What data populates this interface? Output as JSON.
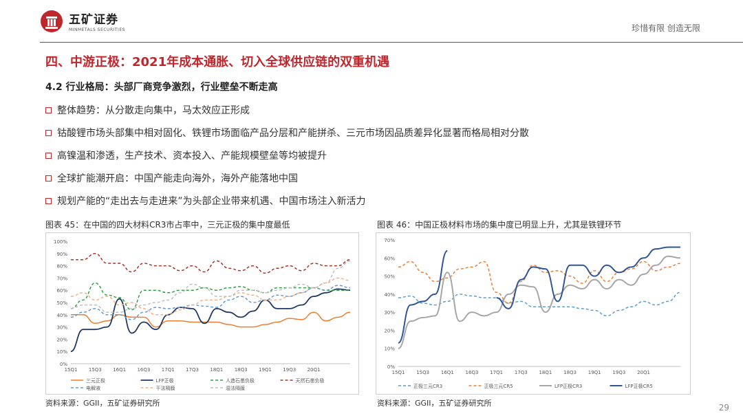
{
  "brand": {
    "name_cn": "五矿证券",
    "name_en": "MINMETALS SECURITIES",
    "slogan": "珍惜有限  创造无限"
  },
  "colors": {
    "accent": "#c0272d"
  },
  "title": "四、中游正极：2021年成本通胀、切入全球供应链的双重机遇",
  "subtitle": "4.2 行业格局：头部厂商竞争激烈，行业壁垒不断走高",
  "bullets": [
    "整体趋势：从分散走向集中，马太效应正形成",
    "钴酸锂市场头部集中相对固化、铁锂市场面临产品分层和产能拼杀、三元市场因品质差异化显著而格局相对分散",
    "高镍温和渗透，生产技术、资本投入、产能规模壁垒等均被提升",
    "全球扩能潮开启：中国产能走向海外，海外产能落地中国",
    "规划产能的“走出去与走进来”为头部企业带来机遇、中国市场注入新活力"
  ],
  "chart1_caption": "图表 45：在中国的四大材料CR3市占率中，三元正极的集中度最低",
  "chart2_caption": "图表 46：中国正极材料市场的集中度已明显上升，尤其是铁锂环节",
  "source1": "资料来源：GGII，五矿证券研究所",
  "source2": "资料来源：GGII，五矿证券研究所",
  "page_number": "29",
  "chart_data": [
    {
      "type": "line",
      "x_ticks": [
        "15Q1",
        "15Q3",
        "16Q1",
        "16Q3",
        "17Q1",
        "17Q3",
        "18Q1",
        "18Q3",
        "19Q1",
        "19Q3",
        "20Q1"
      ],
      "ylim": [
        0,
        1
      ],
      "y_ticks": [
        "0%",
        "10%",
        "20%",
        "30%",
        "40%",
        "50%",
        "60%",
        "70%",
        "80%",
        "90%",
        "100%"
      ],
      "grid": false,
      "legend": "bottom",
      "series": [
        {
          "name": "三元正极",
          "color": "#ed7d31",
          "style": "solid",
          "width": 1.5,
          "values": [
            0.4,
            0.4,
            0.33,
            0.35,
            0.4,
            0.38,
            0.38,
            0.3,
            0.35,
            0.35,
            0.34,
            0.34,
            0.34,
            0.32,
            0.3,
            0.3,
            0.32,
            0.34,
            0.37,
            0.36,
            0.42,
            0.35,
            0.38,
            0.42
          ]
        },
        {
          "name": "LFP正极",
          "color": "#1f3864",
          "style": "solid",
          "width": 1.8,
          "values": [
            0.1,
            0.28,
            0.28,
            0.3,
            0.53,
            0.25,
            0.34,
            0.28,
            0.4,
            0.46,
            0.45,
            0.33,
            0.45,
            0.42,
            0.38,
            0.43,
            0.52,
            0.45,
            0.45,
            0.48,
            0.55,
            0.58,
            0.61,
            0.6
          ]
        },
        {
          "name": "人造石墨负极",
          "color": "#2e9e3f",
          "style": "dashed",
          "width": 1.5,
          "values": [
            0.45,
            0.52,
            0.66,
            0.56,
            0.54,
            0.44,
            0.6,
            0.6,
            0.58,
            0.6,
            0.6,
            0.62,
            0.6,
            0.62,
            0.63,
            0.6,
            0.58,
            0.62,
            0.62,
            0.62,
            0.62,
            0.6,
            0.6,
            0.6
          ]
        },
        {
          "name": "天然石墨负极",
          "color": "#a93226",
          "style": "dashed",
          "width": 1.5,
          "values": [
            0.85,
            0.85,
            0.9,
            0.82,
            0.82,
            0.75,
            0.82,
            0.8,
            0.8,
            0.76,
            0.8,
            0.75,
            0.84,
            0.78,
            0.76,
            0.8,
            0.74,
            0.78,
            0.8,
            0.76,
            0.82,
            0.8,
            0.8,
            0.85
          ]
        },
        {
          "name": "电解液",
          "color": "#5b9bd5",
          "style": "dashed",
          "width": 1.5,
          "values": [
            0.38,
            0.42,
            0.45,
            0.4,
            0.4,
            0.36,
            0.42,
            0.46,
            0.45,
            0.46,
            0.48,
            0.47,
            0.46,
            0.52,
            0.55,
            0.5,
            0.52,
            0.56,
            0.55,
            0.58,
            0.62,
            0.6,
            0.64,
            0.62
          ]
        },
        {
          "name": "干法隔膜",
          "color": "#f4b183",
          "style": "dashed",
          "width": 1.5,
          "values": [
            0.55,
            0.58,
            0.52,
            0.55,
            0.48,
            0.5,
            0.45,
            0.4,
            0.4,
            0.44,
            0.48,
            0.52,
            0.52,
            0.55,
            0.58,
            0.56,
            0.52,
            0.52,
            0.55,
            0.58,
            0.62,
            0.66,
            0.7,
            0.68
          ]
        },
        {
          "name": "湿法隔膜",
          "color": "#bfbfbf",
          "style": "dashed",
          "width": 1.5,
          "values": [
            0.45,
            0.48,
            0.48,
            0.42,
            0.42,
            0.45,
            0.48,
            0.5,
            0.52,
            0.58,
            0.65,
            0.62,
            0.55,
            0.55,
            0.6,
            0.6,
            0.58,
            0.6,
            0.62,
            0.65,
            0.62,
            0.66,
            0.78,
            0.84
          ]
        }
      ]
    },
    {
      "type": "line",
      "x_ticks": [
        "15Q1",
        "15Q3",
        "16Q1",
        "16Q3",
        "17Q1",
        "17Q3",
        "18Q1",
        "18Q3",
        "19Q1",
        "19Q3",
        "20Q1"
      ],
      "ylim": [
        0,
        0.7
      ],
      "y_ticks": [
        "0%",
        "10%",
        "20%",
        "30%",
        "40%",
        "50%",
        "60%",
        "70%"
      ],
      "grid": false,
      "legend": "bottom",
      "series": [
        {
          "name": "正极三元CR3",
          "color": "#5b9bd5",
          "style": "dashed",
          "width": 1.5,
          "values": [
            0.38,
            0.39,
            0.35,
            0.34,
            0.36,
            0.4,
            0.39,
            0.38,
            0.38,
            0.35,
            0.36,
            0.33,
            0.33,
            0.33,
            0.33,
            0.32,
            0.31,
            0.28,
            0.31,
            0.33,
            0.36,
            0.34,
            0.36,
            0.41
          ]
        },
        {
          "name": "正极三元CR5",
          "color": "#ed7d31",
          "style": "dashed",
          "width": 1.5,
          "values": [
            0.55,
            0.58,
            0.52,
            0.47,
            0.49,
            0.54,
            0.55,
            0.58,
            0.41,
            0.35,
            0.47,
            0.56,
            0.52,
            0.53,
            0.5,
            0.46,
            0.53,
            0.47,
            0.52,
            0.54,
            0.58,
            0.53,
            0.55,
            0.57
          ]
        },
        {
          "name": "LFP正极CR3",
          "color": "#a6a6a6",
          "style": "solid",
          "width": 2,
          "values": [
            0.1,
            0.25,
            0.27,
            0.28,
            0.52,
            0.25,
            0.3,
            0.28,
            0.3,
            0.4,
            0.45,
            0.44,
            0.3,
            0.4,
            0.45,
            0.43,
            0.48,
            0.43,
            0.48,
            0.45,
            0.51,
            0.56,
            0.61,
            0.6
          ]
        },
        {
          "name": "LFP正极CR5",
          "color": "#2f5597",
          "style": "solid",
          "width": 2,
          "values": [
            0.13,
            0.34,
            0.36,
            0.4,
            0.64,
            null,
            null,
            null,
            0.38,
            0.32,
            0.48,
            0.55,
            0.54,
            0.36,
            0.56,
            0.56,
            0.5,
            0.56,
            0.52,
            0.55,
            0.6,
            0.65,
            0.66,
            0.66
          ]
        }
      ]
    }
  ]
}
